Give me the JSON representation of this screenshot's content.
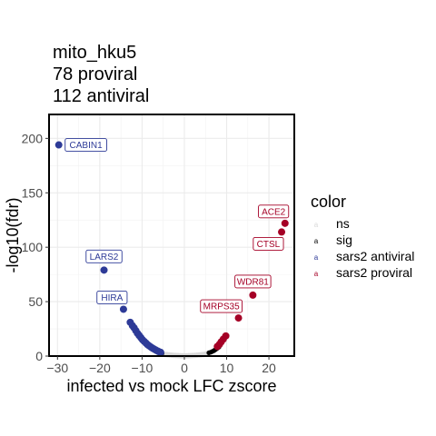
{
  "chart_data": {
    "type": "scatter",
    "title_lines": [
      "mito_hku5",
      "78 proviral",
      "112 antiviral"
    ],
    "xlabel": "infected vs mock LFC zscore",
    "ylabel": "-log10(fdr)",
    "xlim": [
      -32,
      26
    ],
    "ylim": [
      0,
      222
    ],
    "xticks": [
      -30,
      -20,
      -10,
      0,
      10,
      20
    ],
    "yticks": [
      0,
      50,
      100,
      150,
      200
    ],
    "grid": true,
    "legend": {
      "title": "color",
      "placement": "right",
      "entries": [
        {
          "key": "ns",
          "label": "ns",
          "color": "#d9d9d9"
        },
        {
          "key": "sig",
          "label": "sig",
          "color": "#000000"
        },
        {
          "key": "antiviral",
          "label": "sars2 antiviral",
          "color": "#2d3a97"
        },
        {
          "key": "proviral",
          "label": "sars2 proviral",
          "color": "#a50026"
        }
      ]
    },
    "series": [
      {
        "key": "ns",
        "color": "#d9d9d9",
        "points": [
          [
            -4.5,
            1.5
          ],
          [
            -4.0,
            1.2
          ],
          [
            -3.5,
            1.0
          ],
          [
            -3.0,
            0.8
          ],
          [
            -2.5,
            0.6
          ],
          [
            -2.0,
            0.5
          ],
          [
            -1.5,
            0.4
          ],
          [
            -1.0,
            0.3
          ],
          [
            -0.5,
            0.2
          ],
          [
            0.0,
            0.2
          ],
          [
            0.5,
            0.2
          ],
          [
            1.0,
            0.3
          ],
          [
            1.5,
            0.4
          ],
          [
            2.0,
            0.5
          ],
          [
            2.5,
            0.6
          ],
          [
            3.0,
            0.8
          ],
          [
            3.5,
            1.0
          ],
          [
            4.0,
            1.2
          ],
          [
            4.5,
            1.5
          ],
          [
            5.0,
            1.8
          ],
          [
            5.5,
            2.1
          ]
        ]
      },
      {
        "key": "sig",
        "color": "#000000",
        "points": [
          [
            -5.8,
            3.0
          ],
          [
            -5.3,
            2.4
          ],
          [
            5.8,
            3.0
          ],
          [
            6.2,
            3.5
          ],
          [
            6.6,
            4.2
          ],
          [
            7.0,
            5.0
          ],
          [
            7.3,
            5.8
          ],
          [
            7.6,
            6.6
          ],
          [
            7.9,
            7.5
          ],
          [
            8.2,
            8.3
          ]
        ]
      },
      {
        "key": "antiviral",
        "color": "#2d3a97",
        "points": [
          [
            -29.7,
            194
          ],
          [
            -19.0,
            79
          ],
          [
            -14.4,
            43
          ],
          [
            -12.8,
            31
          ],
          [
            -12.3,
            28
          ],
          [
            -11.9,
            26
          ],
          [
            -11.5,
            23.5
          ],
          [
            -11.1,
            21
          ],
          [
            -10.7,
            19
          ],
          [
            -10.3,
            17
          ],
          [
            -9.9,
            15
          ],
          [
            -9.5,
            13.5
          ],
          [
            -9.1,
            12
          ],
          [
            -8.7,
            10.5
          ],
          [
            -8.3,
            9.3
          ],
          [
            -7.9,
            8.2
          ],
          [
            -7.5,
            7.2
          ],
          [
            -7.1,
            6.3
          ],
          [
            -6.7,
            5.4
          ],
          [
            -6.3,
            4.6
          ],
          [
            -6.0,
            4.0
          ],
          [
            -5.6,
            3.4
          ]
        ]
      },
      {
        "key": "proviral",
        "color": "#a50026",
        "points": [
          [
            23.8,
            122
          ],
          [
            23.0,
            114
          ],
          [
            16.2,
            56
          ],
          [
            12.8,
            35
          ],
          [
            9.8,
            18.5
          ],
          [
            9.2,
            15.5
          ],
          [
            8.7,
            13.0
          ],
          [
            8.3,
            10.8
          ],
          [
            7.8,
            8.8
          ]
        ]
      }
    ],
    "labels": [
      {
        "text": "CABIN1",
        "x": -29.7,
        "y": 194,
        "color": "#2d3a97",
        "place": "right"
      },
      {
        "text": "LARS2",
        "x": -19.0,
        "y": 79,
        "color": "#2d3a97",
        "place": "above"
      },
      {
        "text": "HIRA",
        "x": -14.4,
        "y": 43,
        "color": "#2d3a97",
        "place": "above-left"
      },
      {
        "text": "ACE2",
        "x": 23.8,
        "y": 122,
        "color": "#a50026",
        "place": "above-left"
      },
      {
        "text": "CTSL",
        "x": 23.0,
        "y": 114,
        "color": "#a50026",
        "place": "below-left"
      },
      {
        "text": "WDR81",
        "x": 16.2,
        "y": 56,
        "color": "#a50026",
        "place": "above"
      },
      {
        "text": "MRPS35",
        "x": 12.8,
        "y": 35,
        "color": "#a50026",
        "place": "above-left"
      }
    ]
  }
}
